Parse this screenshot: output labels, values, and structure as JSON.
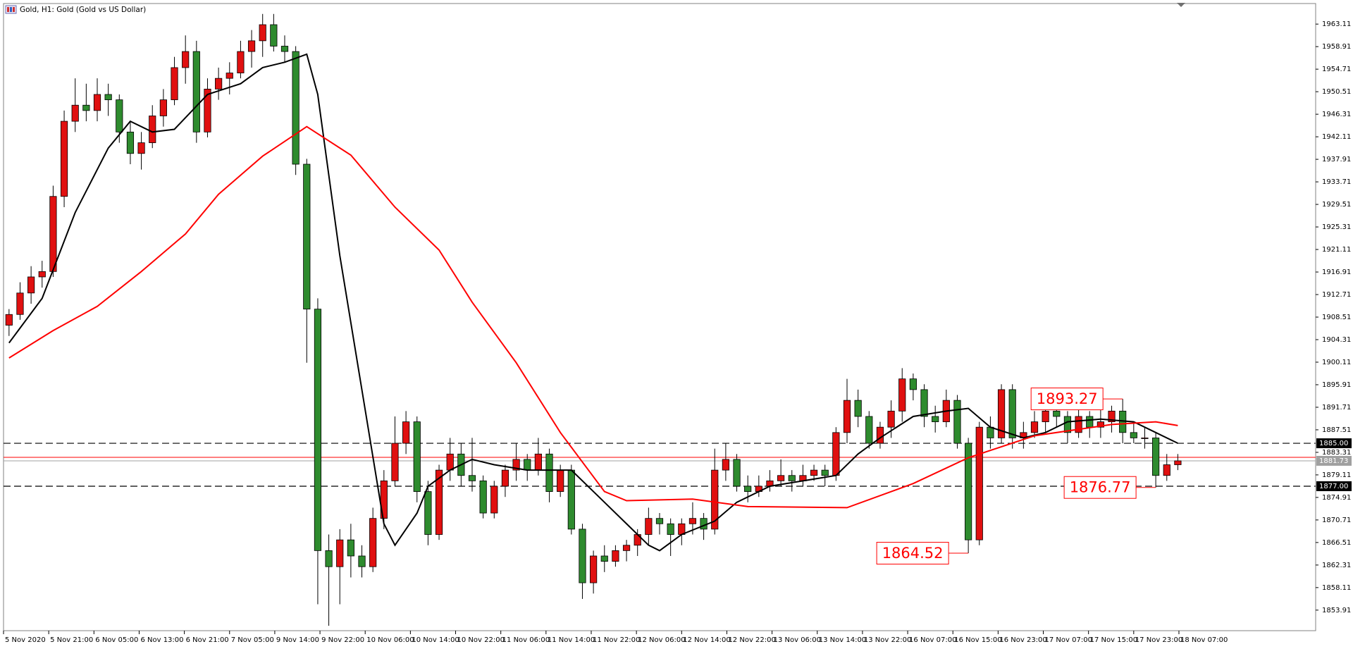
{
  "chart_data": {
    "type": "candlestick",
    "title": "Gold, H1:  Gold (Gold vs US Dollar)",
    "up_color": "#e01010",
    "down_color": "#2e8b2e",
    "candles": [
      [
        1907,
        1910,
        1905,
        1909
      ],
      [
        1909,
        1915,
        1908,
        1913
      ],
      [
        1913,
        1918,
        1911,
        1916
      ],
      [
        1916,
        1919,
        1914,
        1917
      ],
      [
        1917,
        1933,
        1916,
        1931
      ],
      [
        1931,
        1947,
        1929,
        1945
      ],
      [
        1945,
        1953,
        1943,
        1948
      ],
      [
        1948,
        1952,
        1945,
        1947
      ],
      [
        1947,
        1953,
        1945,
        1950
      ],
      [
        1950,
        1952,
        1946,
        1949
      ],
      [
        1949,
        1950,
        1941,
        1943
      ],
      [
        1943,
        1945,
        1937,
        1939
      ],
      [
        1939,
        1943,
        1936,
        1941
      ],
      [
        1941,
        1948,
        1940,
        1946
      ],
      [
        1946,
        1951,
        1944,
        1949
      ],
      [
        1949,
        1957,
        1948,
        1955
      ],
      [
        1955,
        1961,
        1952,
        1958
      ],
      [
        1958,
        1960,
        1941,
        1943
      ],
      [
        1943,
        1953,
        1942,
        1951
      ],
      [
        1951,
        1955,
        1949,
        1953
      ],
      [
        1953,
        1956,
        1950,
        1954
      ],
      [
        1954,
        1960,
        1953,
        1958
      ],
      [
        1958,
        1962,
        1955,
        1960
      ],
      [
        1960,
        1965,
        1957,
        1963
      ],
      [
        1963,
        1965,
        1958,
        1959
      ],
      [
        1959,
        1961,
        1956,
        1958
      ],
      [
        1958,
        1959,
        1935,
        1937
      ],
      [
        1937,
        1938,
        1900,
        1910
      ],
      [
        1910,
        1912,
        1855,
        1865
      ],
      [
        1865,
        1868,
        1851,
        1862
      ],
      [
        1862,
        1869,
        1855,
        1867
      ],
      [
        1867,
        1870,
        1860,
        1864
      ],
      [
        1864,
        1866,
        1860,
        1862
      ],
      [
        1862,
        1873,
        1861,
        1871
      ],
      [
        1871,
        1880,
        1869,
        1878
      ],
      [
        1878,
        1890,
        1877,
        1885
      ],
      [
        1885,
        1891,
        1883,
        1889
      ],
      [
        1889,
        1890,
        1874,
        1876
      ],
      [
        1876,
        1878,
        1866,
        1868
      ],
      [
        1868,
        1881,
        1867,
        1880
      ],
      [
        1880,
        1886,
        1878,
        1883
      ],
      [
        1883,
        1885,
        1877,
        1879
      ],
      [
        1879,
        1886,
        1876,
        1878
      ],
      [
        1878,
        1879,
        1871,
        1872
      ],
      [
        1872,
        1878,
        1871,
        1877
      ],
      [
        1877,
        1881,
        1875,
        1880
      ],
      [
        1880,
        1885,
        1878,
        1882
      ],
      [
        1882,
        1883,
        1878,
        1880
      ],
      [
        1880,
        1886,
        1879,
        1883
      ],
      [
        1883,
        1884,
        1874,
        1876
      ],
      [
        1876,
        1881,
        1875,
        1880
      ],
      [
        1880,
        1881,
        1868,
        1869
      ],
      [
        1869,
        1870,
        1856,
        1859
      ],
      [
        1859,
        1865,
        1857,
        1864
      ],
      [
        1864,
        1866,
        1861,
        1863
      ],
      [
        1863,
        1866,
        1862,
        1865
      ],
      [
        1865,
        1867,
        1863,
        1866
      ],
      [
        1866,
        1869,
        1864,
        1868
      ],
      [
        1868,
        1873,
        1866,
        1871
      ],
      [
        1871,
        1872,
        1868,
        1870
      ],
      [
        1870,
        1871,
        1864,
        1868
      ],
      [
        1868,
        1871,
        1866,
        1870
      ],
      [
        1870,
        1874,
        1868,
        1871
      ],
      [
        1871,
        1872,
        1867,
        1869
      ],
      [
        1869,
        1884,
        1868,
        1880
      ],
      [
        1880,
        1885,
        1878,
        1882
      ],
      [
        1882,
        1883,
        1876,
        1877
      ],
      [
        1877,
        1879,
        1874,
        1876
      ],
      [
        1876,
        1879,
        1875,
        1877
      ],
      [
        1877,
        1880,
        1876,
        1878
      ],
      [
        1878,
        1882,
        1877,
        1879
      ],
      [
        1879,
        1880,
        1876,
        1878
      ],
      [
        1878,
        1881,
        1877,
        1879
      ],
      [
        1879,
        1881,
        1878,
        1880
      ],
      [
        1880,
        1881,
        1877,
        1879
      ],
      [
        1879,
        1888,
        1878,
        1887
      ],
      [
        1887,
        1897,
        1885,
        1893
      ],
      [
        1893,
        1895,
        1888,
        1890
      ],
      [
        1890,
        1891,
        1884,
        1885
      ],
      [
        1885,
        1889,
        1884,
        1888
      ],
      [
        1888,
        1893,
        1886,
        1891
      ],
      [
        1891,
        1899,
        1889,
        1897
      ],
      [
        1897,
        1898,
        1893,
        1895
      ],
      [
        1895,
        1896,
        1888,
        1890
      ],
      [
        1890,
        1892,
        1887,
        1889
      ],
      [
        1889,
        1895,
        1888,
        1893
      ],
      [
        1893,
        1894,
        1884,
        1885
      ],
      [
        1885,
        1886,
        1864.52,
        1867
      ],
      [
        1867,
        1889,
        1866,
        1888
      ],
      [
        1888,
        1890,
        1884,
        1886
      ],
      [
        1886,
        1896,
        1885,
        1895
      ],
      [
        1895,
        1896,
        1884,
        1886
      ],
      [
        1886,
        1889,
        1884,
        1887
      ],
      [
        1887,
        1891,
        1886,
        1889
      ],
      [
        1889,
        1892,
        1887,
        1891
      ],
      [
        1891,
        1893,
        1888,
        1890
      ],
      [
        1890,
        1891,
        1885,
        1887
      ],
      [
        1887,
        1892,
        1886,
        1890
      ],
      [
        1890,
        1891,
        1886,
        1888
      ],
      [
        1888,
        1893,
        1886,
        1889
      ],
      [
        1889,
        1892,
        1887,
        1891
      ],
      [
        1891,
        1893.27,
        1885,
        1887
      ],
      [
        1887,
        1889,
        1885,
        1886
      ],
      [
        1886,
        1888,
        1884,
        1886
      ],
      [
        1886,
        1887,
        1876.77,
        1879
      ],
      [
        1879,
        1883,
        1878,
        1881
      ],
      [
        1881,
        1883,
        1880,
        1881.73
      ]
    ],
    "lines": [
      {
        "color": "#000000",
        "x": [
          0,
          3,
          6,
          9,
          11,
          13,
          15,
          18,
          21,
          23,
          25,
          27,
          28,
          30,
          32,
          34,
          35,
          37,
          38,
          40,
          42,
          44,
          47,
          51,
          54,
          57,
          58,
          59,
          61,
          64,
          66,
          69,
          72,
          75,
          77,
          79,
          82,
          85,
          87,
          89,
          92,
          94,
          96,
          99,
          102,
          104,
          106
        ],
        "values": [
          1903.7,
          1912,
          1928,
          1940,
          1945,
          1943,
          1943.5,
          1950,
          1952,
          1955,
          1956,
          1957.5,
          1950,
          1920,
          1895,
          1870,
          1866,
          1872,
          1877,
          1880,
          1882,
          1881,
          1880,
          1880,
          1874,
          1868,
          1866,
          1865,
          1868,
          1870.5,
          1874,
          1877,
          1878,
          1879,
          1883,
          1886,
          1890,
          1891,
          1891.5,
          1888,
          1886,
          1887,
          1889,
          1889.5,
          1889,
          1887,
          1885
        ]
      },
      {
        "color": "#ff0000",
        "x": [
          0,
          4,
          8,
          12,
          16,
          19,
          23,
          27,
          31,
          35,
          39,
          42,
          46,
          50,
          54,
          56,
          62,
          67,
          76,
          82,
          87,
          93,
          100,
          104,
          106
        ],
        "values": [
          1900.9,
          1906,
          1910.5,
          1917,
          1924,
          1931.4,
          1938.5,
          1944,
          1938.7,
          1929,
          1921,
          1911.3,
          1900,
          1887,
          1876,
          1874.3,
          1874.6,
          1873.2,
          1873,
          1877.5,
          1882.3,
          1886.4,
          1888.5,
          1889,
          1888.3
        ]
      }
    ],
    "xlim": [
      0,
      119
    ],
    "xticks": [
      {
        "value": 0,
        "label": "5 Nov 2020"
      },
      {
        "value": 4.1,
        "label": "5 Nov 21:00"
      },
      {
        "value": 8.2,
        "label": "6 Nov 05:00"
      },
      {
        "value": 12.3,
        "label": "6 Nov 13:00"
      },
      {
        "value": 16.4,
        "label": "6 Nov 21:00"
      },
      {
        "value": 20.5,
        "label": "7 Nov 05:00"
      },
      {
        "value": 24.6,
        "label": "9 Nov 14:00"
      },
      {
        "value": 28.7,
        "label": "9 Nov 22:00"
      },
      {
        "value": 32.8,
        "label": "10 Nov 06:00"
      },
      {
        "value": 36.9,
        "label": "10 Nov 14:00"
      },
      {
        "value": 41,
        "label": "10 Nov 22:00"
      },
      {
        "value": 45.1,
        "label": "11 Nov 06:00"
      },
      {
        "value": 49.2,
        "label": "11 Nov 14:00"
      },
      {
        "value": 53.3,
        "label": "11 Nov 22:00"
      },
      {
        "value": 57.4,
        "label": "12 Nov 06:00"
      },
      {
        "value": 61.5,
        "label": "12 Nov 14:00"
      },
      {
        "value": 65.6,
        "label": "12 Nov 22:00"
      },
      {
        "value": 69.7,
        "label": "13 Nov 06:00"
      },
      {
        "value": 73.8,
        "label": "13 Nov 14:00"
      },
      {
        "value": 77.9,
        "label": "13 Nov 22:00"
      },
      {
        "value": 82,
        "label": "16 Nov 07:00"
      },
      {
        "value": 86.1,
        "label": "16 Nov 15:00"
      },
      {
        "value": 90.2,
        "label": "16 Nov 23:00"
      },
      {
        "value": 94.3,
        "label": "17 Nov 07:00"
      },
      {
        "value": 98.4,
        "label": "17 Nov 15:00"
      },
      {
        "value": 102.5,
        "label": "17 Nov 23:00"
      },
      {
        "value": 106.6,
        "label": "18 Nov 07:00"
      }
    ],
    "ylim": [
      1850.21,
      1966.81
    ],
    "yticks": [
      1853.91,
      1858.11,
      1862.31,
      1866.51,
      1870.71,
      1874.91,
      1879.11,
      1883.31,
      1887.51,
      1891.71,
      1895.91,
      1900.11,
      1904.31,
      1908.51,
      1912.71,
      1916.91,
      1921.11,
      1925.31,
      1929.51,
      1933.71,
      1937.91,
      1942.11,
      1946.31,
      1950.51,
      1954.71,
      1958.91,
      1963.11
    ],
    "hlines": [
      {
        "value": 1885,
        "label": "1885.00",
        "color": "#000000",
        "dash": true
      },
      {
        "value": 1877,
        "label": "1877.00",
        "color": "#000000",
        "dash": true
      },
      {
        "value": 1882.38,
        "color": "#ff0000",
        "dash": false
      },
      {
        "value": 1881.73,
        "color": "#a0a0a0",
        "dash": false,
        "boxed": true
      }
    ],
    "annotations": [
      {
        "value": 1893.27,
        "x": 101
      },
      {
        "value": 1864.52,
        "x": 87
      },
      {
        "value": 1876.77,
        "x": 104
      }
    ]
  }
}
